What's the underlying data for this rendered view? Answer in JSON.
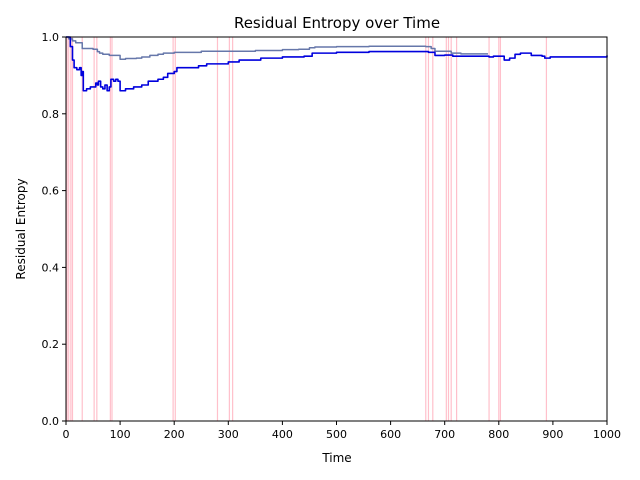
{
  "chart_data": {
    "type": "line",
    "title": "Residual Entropy over Time",
    "xlabel": "Time",
    "ylabel": "Residual Entropy",
    "xlim": [
      0,
      1000
    ],
    "ylim": [
      0.0,
      1.0
    ],
    "xticks": [
      "0",
      "100",
      "200",
      "300",
      "400",
      "500",
      "600",
      "700",
      "800",
      "900",
      "1000"
    ],
    "yticks": [
      "0.0",
      "0.2",
      "0.4",
      "0.6",
      "0.8",
      "1.0"
    ],
    "grid": false,
    "legend": "none",
    "event_markers": {
      "color": "#ffc0cb",
      "x": [
        2,
        5,
        9,
        12,
        30,
        52,
        57,
        82,
        85,
        198,
        202,
        280,
        302,
        308,
        665,
        670,
        678,
        703,
        707,
        712,
        722,
        782,
        800,
        803,
        888
      ]
    },
    "series": [
      {
        "color": "#0000dd",
        "points": [
          [
            0,
            1.0
          ],
          [
            8,
            0.975
          ],
          [
            12,
            0.94
          ],
          [
            15,
            0.92
          ],
          [
            20,
            0.915
          ],
          [
            25,
            0.92
          ],
          [
            28,
            0.9
          ],
          [
            30,
            0.91
          ],
          [
            32,
            0.86
          ],
          [
            38,
            0.865
          ],
          [
            45,
            0.87
          ],
          [
            52,
            0.87
          ],
          [
            55,
            0.88
          ],
          [
            58,
            0.875
          ],
          [
            60,
            0.885
          ],
          [
            64,
            0.87
          ],
          [
            68,
            0.865
          ],
          [
            72,
            0.875
          ],
          [
            76,
            0.86
          ],
          [
            80,
            0.87
          ],
          [
            83,
            0.89
          ],
          [
            88,
            0.885
          ],
          [
            92,
            0.89
          ],
          [
            96,
            0.885
          ],
          [
            100,
            0.86
          ],
          [
            110,
            0.865
          ],
          [
            125,
            0.87
          ],
          [
            140,
            0.875
          ],
          [
            152,
            0.885
          ],
          [
            170,
            0.89
          ],
          [
            180,
            0.895
          ],
          [
            188,
            0.905
          ],
          [
            195,
            0.905
          ],
          [
            200,
            0.91
          ],
          [
            205,
            0.92
          ],
          [
            220,
            0.92
          ],
          [
            245,
            0.925
          ],
          [
            260,
            0.93
          ],
          [
            280,
            0.93
          ],
          [
            300,
            0.935
          ],
          [
            320,
            0.94
          ],
          [
            360,
            0.945
          ],
          [
            400,
            0.948
          ],
          [
            440,
            0.95
          ],
          [
            455,
            0.958
          ],
          [
            500,
            0.96
          ],
          [
            560,
            0.962
          ],
          [
            660,
            0.962
          ],
          [
            670,
            0.96
          ],
          [
            682,
            0.952
          ],
          [
            700,
            0.953
          ],
          [
            715,
            0.95
          ],
          [
            760,
            0.95
          ],
          [
            782,
            0.948
          ],
          [
            790,
            0.95
          ],
          [
            800,
            0.95
          ],
          [
            810,
            0.94
          ],
          [
            820,
            0.945
          ],
          [
            830,
            0.955
          ],
          [
            840,
            0.958
          ],
          [
            855,
            0.958
          ],
          [
            860,
            0.952
          ],
          [
            880,
            0.95
          ],
          [
            885,
            0.945
          ],
          [
            895,
            0.948
          ],
          [
            950,
            0.948
          ],
          [
            1000,
            0.952
          ]
        ]
      },
      {
        "color": "#6677aa",
        "points": [
          [
            0,
            1.0
          ],
          [
            5,
            0.995
          ],
          [
            12,
            0.99
          ],
          [
            18,
            0.985
          ],
          [
            25,
            0.985
          ],
          [
            30,
            0.97
          ],
          [
            40,
            0.97
          ],
          [
            50,
            0.968
          ],
          [
            58,
            0.962
          ],
          [
            62,
            0.958
          ],
          [
            68,
            0.955
          ],
          [
            75,
            0.955
          ],
          [
            80,
            0.952
          ],
          [
            85,
            0.952
          ],
          [
            95,
            0.952
          ],
          [
            100,
            0.942
          ],
          [
            110,
            0.944
          ],
          [
            130,
            0.945
          ],
          [
            140,
            0.948
          ],
          [
            155,
            0.952
          ],
          [
            170,
            0.955
          ],
          [
            180,
            0.958
          ],
          [
            190,
            0.958
          ],
          [
            200,
            0.96
          ],
          [
            240,
            0.96
          ],
          [
            250,
            0.963
          ],
          [
            300,
            0.963
          ],
          [
            350,
            0.965
          ],
          [
            400,
            0.967
          ],
          [
            430,
            0.968
          ],
          [
            450,
            0.972
          ],
          [
            460,
            0.974
          ],
          [
            500,
            0.975
          ],
          [
            560,
            0.976
          ],
          [
            620,
            0.976
          ],
          [
            665,
            0.975
          ],
          [
            675,
            0.97
          ],
          [
            682,
            0.963
          ],
          [
            700,
            0.963
          ],
          [
            712,
            0.958
          ],
          [
            730,
            0.956
          ],
          [
            780,
            0.956
          ]
        ]
      }
    ]
  }
}
